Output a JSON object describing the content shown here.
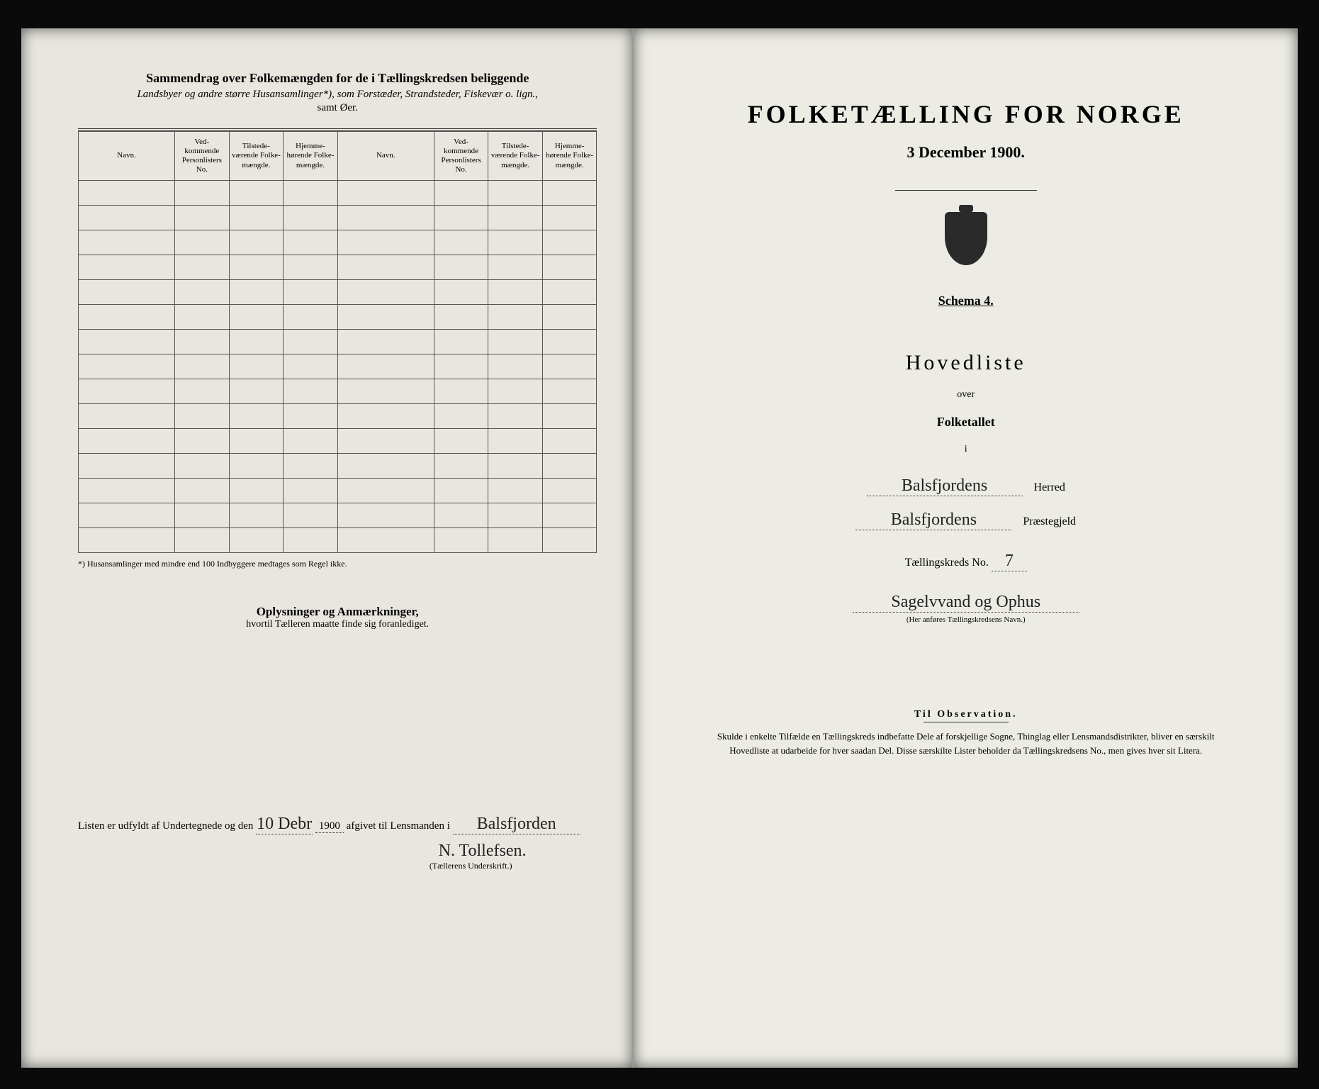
{
  "left": {
    "title": "Sammendrag over Folkemængden for de i Tællingskredsen beliggende",
    "subtitle_italic": "Landsbyer og andre større Husansamlinger*), som Forstæder, Strandsteder, Fiskevær o. lign.,",
    "subtitle2": "samt Øer.",
    "columns": {
      "navn": "Navn.",
      "vedk": "Ved-\nkommende\nPersonlisters\nNo.",
      "tilstede": "Tilstede-\nværende\nFolke-\nmængde.",
      "hjemme": "Hjemme-\nhørende\nFolke-\nmængde."
    },
    "row_count": 15,
    "footnote": "*) Husansamlinger med mindre end 100 Indbyggere medtages som Regel ikke.",
    "oplys_title": "Oplysninger og Anmærkninger,",
    "oplys_sub": "hvortil Tælleren maatte finde sig foranlediget.",
    "sig_prefix": "Listen er udfyldt af Undertegnede og den",
    "sig_day": "10 Debr",
    "sig_year": "1900",
    "sig_mid": "afgivet til Lensmanden i",
    "sig_place": "Balsfjorden",
    "signature": "N. Tollefsen.",
    "sig_caption": "(Tællerens Underskrift.)"
  },
  "right": {
    "main_title": "FOLKETÆLLING FOR NORGE",
    "date": "3 December 1900.",
    "schema": "Schema 4.",
    "hovedliste": "Hovedliste",
    "over": "over",
    "folketallet": "Folketallet",
    "i": "i",
    "herred_value": "Balsfjordens",
    "herred_label": "Herred",
    "prestegjeld_value": "Balsfjordens",
    "prestegjeld_label": "Præstegjeld",
    "kreds_label": "Tællingskreds No.",
    "kreds_no": "7",
    "kreds_name": "Sagelvvand og Ophus",
    "kreds_caption": "(Her anføres Tællingskredsens Navn.)",
    "obs_title": "Til Observation.",
    "obs_text": "Skulde i enkelte Tilfælde en Tællingskreds indbefatte Dele af forskjellige Sogne, Thinglag eller Lensmandsdistrikter, bliver en særskilt Hovedliste at udarbeide for hver saadan Del. Disse særskilte Lister beholder da Tællingskredsens No., men gives hver sit Litera."
  },
  "colors": {
    "paper": "#e8e6df",
    "paper_right": "#ecebe4",
    "ink": "#1a1a1a",
    "border": "#555"
  }
}
